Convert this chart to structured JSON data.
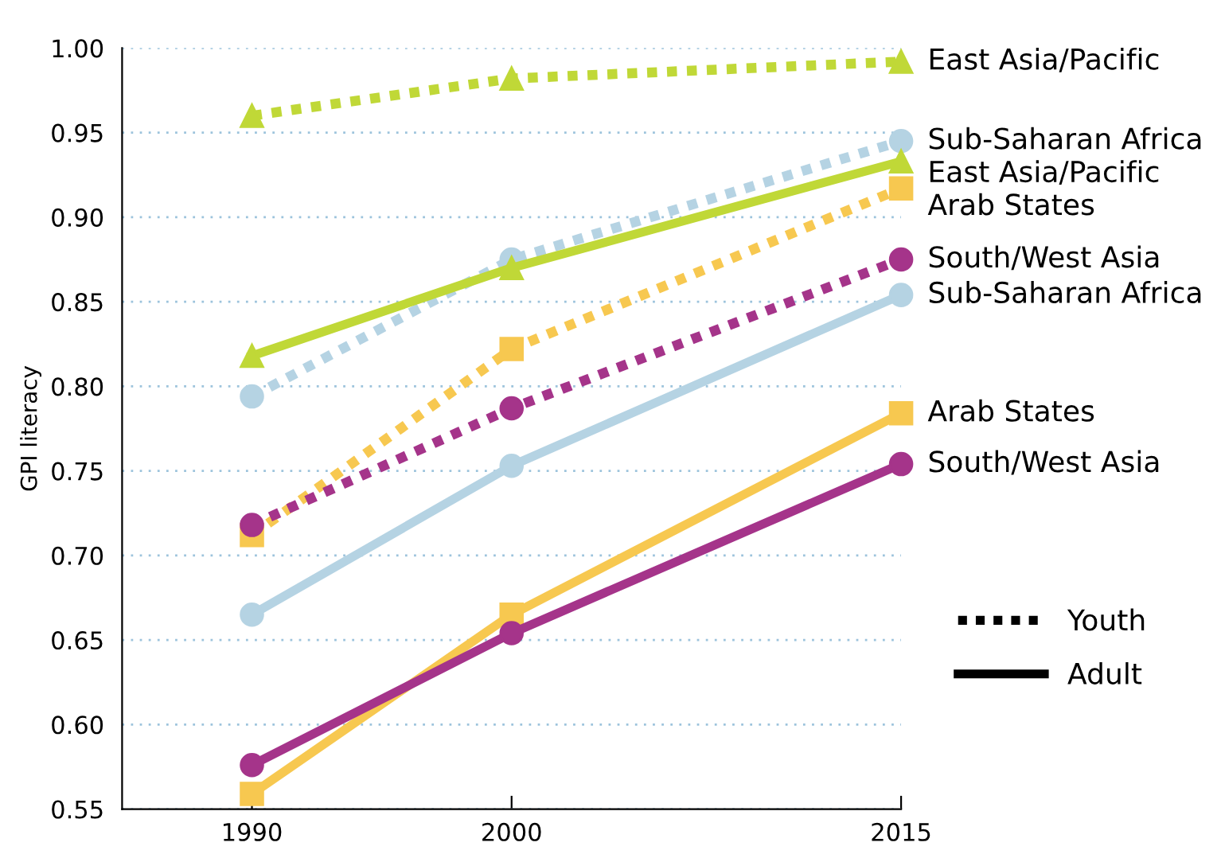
{
  "chart_data": {
    "type": "line",
    "ylabel": "GPI literacy",
    "x": [
      1990,
      2000,
      2015
    ],
    "xlim": [
      1985,
      2015
    ],
    "xticks": [
      1990,
      2000,
      2015
    ],
    "ylim": [
      0.55,
      1.0
    ],
    "yticks": [
      {
        "value": 0.55,
        "label": "0.55"
      },
      {
        "value": 0.6,
        "label": "0.60"
      },
      {
        "value": 0.65,
        "label": "0.65"
      },
      {
        "value": 0.7,
        "label": "0.70"
      },
      {
        "value": 0.75,
        "label": "0.75"
      },
      {
        "value": 0.8,
        "label": "0.80"
      },
      {
        "value": 0.85,
        "label": "0.85"
      },
      {
        "value": 0.9,
        "label": "0.90"
      },
      {
        "value": 0.95,
        "label": "0.95"
      },
      {
        "value": 1.0,
        "label": "1.00"
      }
    ],
    "grid": "y",
    "legend": "right",
    "annotations": [
      "Youth",
      "Adult"
    ],
    "series": [
      {
        "name": "East Asia/Pacific",
        "color": "#c0d837",
        "marker": "triangle",
        "line_style": "dotted",
        "values": [
          0.96,
          0.982,
          0.992
        ]
      },
      {
        "name": "Sub-Saharan Africa",
        "color": "#b5d3e3",
        "marker": "circle",
        "line_style": "dotted",
        "values": [
          0.794,
          0.875,
          0.945
        ]
      },
      {
        "name": "East Asia/Pacific",
        "color": "#c0d837",
        "marker": "triangle",
        "line_style": "solid",
        "values": [
          0.818,
          0.87,
          0.933
        ]
      },
      {
        "name": "Arab States",
        "color": "#f7c850",
        "marker": "square",
        "line_style": "dotted",
        "values": [
          0.712,
          0.822,
          0.917
        ]
      },
      {
        "name": "South/West Asia",
        "color": "#a5348a",
        "marker": "circle",
        "line_style": "dotted",
        "values": [
          0.718,
          0.787,
          0.875
        ]
      },
      {
        "name": "Sub-Saharan Africa",
        "color": "#b5d3e3",
        "marker": "circle",
        "line_style": "solid",
        "values": [
          0.665,
          0.753,
          0.854
        ]
      },
      {
        "name": "Arab States",
        "color": "#f7c850",
        "marker": "square",
        "line_style": "solid",
        "values": [
          0.559,
          0.665,
          0.784
        ]
      },
      {
        "name": "South/West Asia",
        "color": "#a5348a",
        "marker": "circle",
        "line_style": "solid",
        "values": [
          0.576,
          0.654,
          0.754
        ]
      }
    ]
  }
}
